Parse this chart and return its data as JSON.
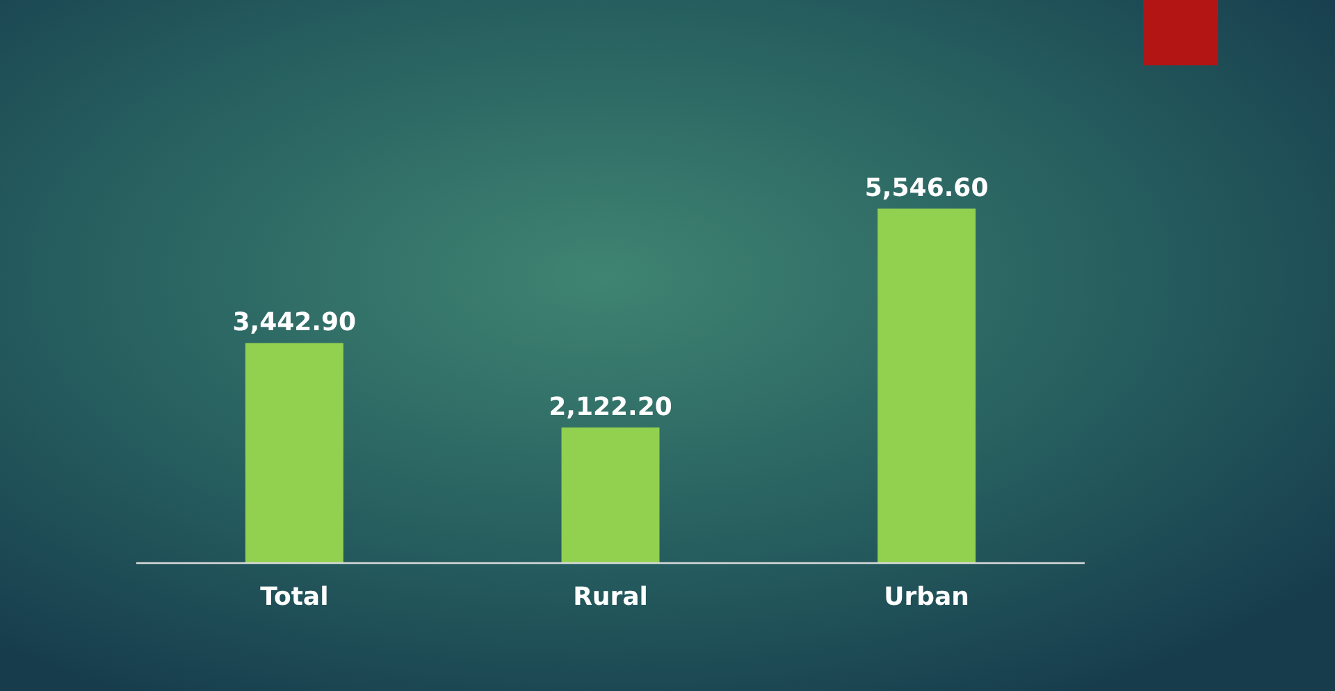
{
  "chart_data": {
    "type": "bar",
    "categories": [
      "Total",
      "Rural",
      "Urban"
    ],
    "values": [
      3442.9,
      2122.2,
      5546.6
    ],
    "color": "#92d050",
    "data_labels": true,
    "value_labels": [
      "3,442.90",
      "2,122.20",
      "5,546.60"
    ]
  }
}
